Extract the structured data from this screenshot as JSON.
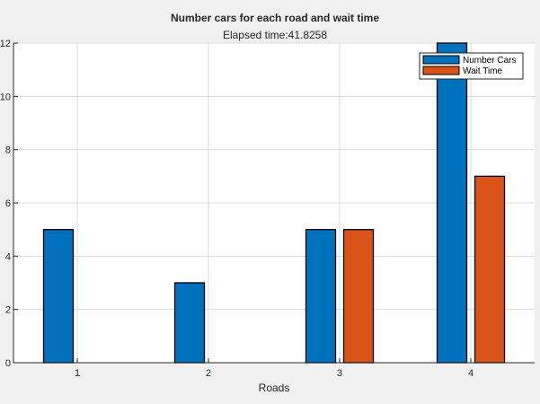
{
  "chart_data": {
    "type": "bar",
    "title": "Number cars for each road and wait time",
    "subtitle": "Elapsed time:41.8258",
    "xlabel": "Roads",
    "ylabel": "",
    "categories": [
      "1",
      "2",
      "3",
      "4"
    ],
    "series": [
      {
        "name": "Number Cars",
        "values": [
          5,
          3,
          5,
          12
        ],
        "color": "#0072bd"
      },
      {
        "name": "Wait Time",
        "values": [
          0,
          0,
          5,
          7
        ],
        "color": "#d95319"
      }
    ],
    "ylim": [
      0,
      12
    ],
    "yticks": [
      0,
      2,
      4,
      6,
      8,
      10,
      12
    ],
    "grid": true,
    "legend_position": "top-right"
  }
}
